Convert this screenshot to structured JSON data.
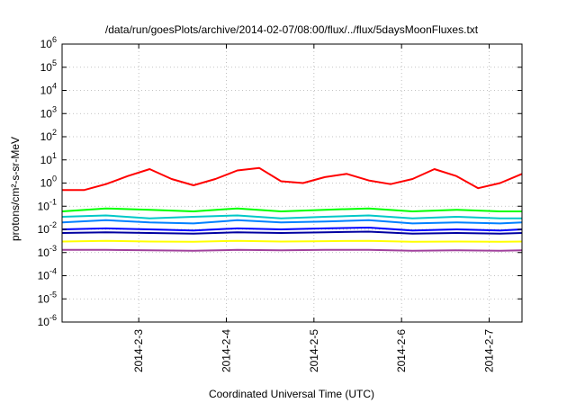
{
  "chart_data": {
    "type": "line",
    "title": "/data/run/goesPlots/archive/2014-02-07/08:00/flux/../flux/5daysMoonFluxes.txt",
    "xlabel": "Coordinated Universal Time (UTC)",
    "ylabel": "protons/cm²-s-sr-MeV",
    "xlim": [
      "2014-02-02T03:00",
      "2014-02-07T09:00"
    ],
    "yscale": "log",
    "ylim": [
      1e-06,
      1000000.0
    ],
    "grid": true,
    "legend": "none",
    "x_ticks": [
      {
        "label": "2014-2-3",
        "value": "2014-02-03T00:00"
      },
      {
        "label": "2014-2-4",
        "value": "2014-02-04T00:00"
      },
      {
        "label": "2014-2-5",
        "value": "2014-02-05T00:00"
      },
      {
        "label": "2014-2-6",
        "value": "2014-02-06T00:00"
      },
      {
        "label": "2014-2-7",
        "value": "2014-02-07T00:00"
      }
    ],
    "y_ticks": [
      {
        "base": "10",
        "exp": "6"
      },
      {
        "base": "10",
        "exp": "5"
      },
      {
        "base": "10",
        "exp": "4"
      },
      {
        "base": "10",
        "exp": "3"
      },
      {
        "base": "10",
        "exp": "2"
      },
      {
        "base": "10",
        "exp": "1"
      },
      {
        "base": "10",
        "exp": "0"
      },
      {
        "base": "10",
        "exp": "-1"
      },
      {
        "base": "10",
        "exp": "-2"
      },
      {
        "base": "10",
        "exp": "-3"
      },
      {
        "base": "10",
        "exp": "-4"
      },
      {
        "base": "10",
        "exp": "-5"
      },
      {
        "base": "10",
        "exp": "-6"
      }
    ],
    "series": [
      {
        "color": "#ff0000",
        "x": [
          "2014-02-02T03:00",
          "2014-02-02T09:00",
          "2014-02-02T15:00",
          "2014-02-02T21:00",
          "2014-02-03T03:00",
          "2014-02-03T09:00",
          "2014-02-03T15:00",
          "2014-02-03T21:00",
          "2014-02-04T03:00",
          "2014-02-04T09:00",
          "2014-02-04T15:00",
          "2014-02-04T21:00",
          "2014-02-05T03:00",
          "2014-02-05T09:00",
          "2014-02-05T15:00",
          "2014-02-05T21:00",
          "2014-02-06T03:00",
          "2014-02-06T09:00",
          "2014-02-06T15:00",
          "2014-02-06T21:00",
          "2014-02-07T03:00",
          "2014-02-07T09:00"
        ],
        "y": [
          0.5,
          0.5,
          0.9,
          2.0,
          4.0,
          1.5,
          0.8,
          1.5,
          3.5,
          4.5,
          1.2,
          1.0,
          1.8,
          2.5,
          1.3,
          0.9,
          1.5,
          4.0,
          2.0,
          0.6,
          1.0,
          2.5
        ]
      },
      {
        "color": "#00ff00",
        "x": [
          "2014-02-02T03:00",
          "2014-02-02T15:00",
          "2014-02-03T03:00",
          "2014-02-03T15:00",
          "2014-02-04T03:00",
          "2014-02-04T15:00",
          "2014-02-05T03:00",
          "2014-02-05T15:00",
          "2014-02-06T03:00",
          "2014-02-06T15:00",
          "2014-02-07T03:00",
          "2014-02-07T09:00"
        ],
        "y": [
          0.06,
          0.08,
          0.07,
          0.06,
          0.08,
          0.06,
          0.07,
          0.08,
          0.06,
          0.07,
          0.06,
          0.06
        ]
      },
      {
        "color": "#00c8c8",
        "x": [
          "2014-02-02T03:00",
          "2014-02-02T15:00",
          "2014-02-03T03:00",
          "2014-02-03T15:00",
          "2014-02-04T03:00",
          "2014-02-04T15:00",
          "2014-02-05T03:00",
          "2014-02-05T15:00",
          "2014-02-06T03:00",
          "2014-02-06T15:00",
          "2014-02-07T03:00",
          "2014-02-07T09:00"
        ],
        "y": [
          0.035,
          0.04,
          0.03,
          0.035,
          0.04,
          0.03,
          0.035,
          0.04,
          0.03,
          0.035,
          0.03,
          0.03
        ]
      },
      {
        "color": "#0080ff",
        "x": [
          "2014-02-02T03:00",
          "2014-02-02T15:00",
          "2014-02-03T03:00",
          "2014-02-03T15:00",
          "2014-02-04T03:00",
          "2014-02-04T15:00",
          "2014-02-05T03:00",
          "2014-02-05T15:00",
          "2014-02-06T03:00",
          "2014-02-06T15:00",
          "2014-02-07T03:00",
          "2014-02-07T09:00"
        ],
        "y": [
          0.02,
          0.025,
          0.02,
          0.018,
          0.025,
          0.02,
          0.022,
          0.025,
          0.018,
          0.02,
          0.018,
          0.02
        ]
      },
      {
        "color": "#0000ff",
        "x": [
          "2014-02-02T03:00",
          "2014-02-02T15:00",
          "2014-02-03T03:00",
          "2014-02-03T15:00",
          "2014-02-04T03:00",
          "2014-02-04T15:00",
          "2014-02-05T03:00",
          "2014-02-05T15:00",
          "2014-02-06T03:00",
          "2014-02-06T15:00",
          "2014-02-07T03:00",
          "2014-02-07T09:00"
        ],
        "y": [
          0.01,
          0.011,
          0.01,
          0.009,
          0.011,
          0.01,
          0.011,
          0.012,
          0.009,
          0.01,
          0.009,
          0.01
        ]
      },
      {
        "color": "#0000a0",
        "x": [
          "2014-02-02T03:00",
          "2014-02-02T15:00",
          "2014-02-03T03:00",
          "2014-02-03T15:00",
          "2014-02-04T03:00",
          "2014-02-04T15:00",
          "2014-02-05T03:00",
          "2014-02-05T15:00",
          "2014-02-06T03:00",
          "2014-02-06T15:00",
          "2014-02-07T03:00",
          "2014-02-07T09:00"
        ],
        "y": [
          0.007,
          0.0075,
          0.007,
          0.0065,
          0.0075,
          0.007,
          0.0075,
          0.008,
          0.0065,
          0.007,
          0.0065,
          0.007
        ]
      },
      {
        "color": "#ffff00",
        "x": [
          "2014-02-02T03:00",
          "2014-02-02T15:00",
          "2014-02-03T03:00",
          "2014-02-03T15:00",
          "2014-02-04T03:00",
          "2014-02-04T15:00",
          "2014-02-05T03:00",
          "2014-02-05T15:00",
          "2014-02-06T03:00",
          "2014-02-06T15:00",
          "2014-02-07T03:00",
          "2014-02-07T09:00"
        ],
        "y": [
          0.003,
          0.0032,
          0.003,
          0.0029,
          0.0032,
          0.003,
          0.0031,
          0.0032,
          0.0029,
          0.003,
          0.0029,
          0.003
        ]
      },
      {
        "color": "#a0409c",
        "x": [
          "2014-02-02T03:00",
          "2014-02-02T15:00",
          "2014-02-03T03:00",
          "2014-02-03T15:00",
          "2014-02-04T03:00",
          "2014-02-04T15:00",
          "2014-02-05T03:00",
          "2014-02-05T15:00",
          "2014-02-06T03:00",
          "2014-02-06T15:00",
          "2014-02-07T03:00",
          "2014-02-07T09:00"
        ],
        "y": [
          0.0013,
          0.0013,
          0.00125,
          0.0012,
          0.0013,
          0.00125,
          0.0013,
          0.0013,
          0.0012,
          0.00125,
          0.0012,
          0.00125
        ]
      }
    ]
  }
}
